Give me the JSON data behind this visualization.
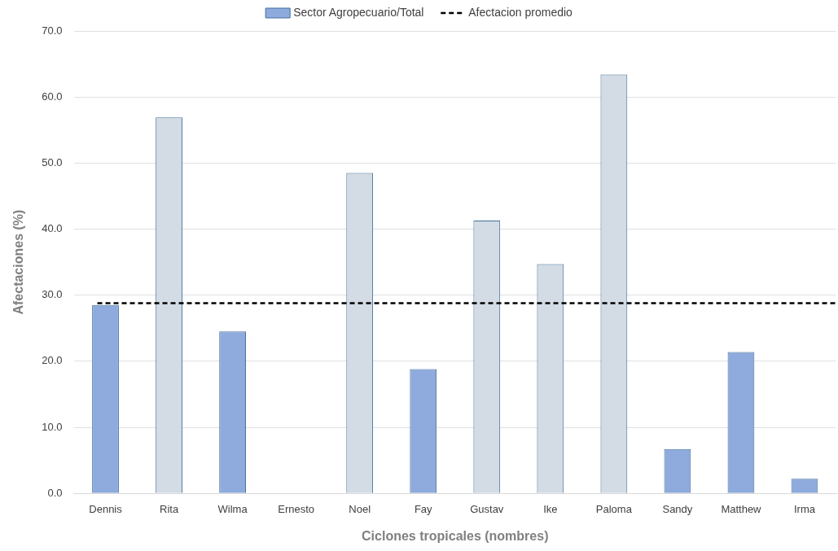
{
  "chart_data": {
    "type": "bar",
    "xlabel": "Ciclones tropicales (nombres)",
    "ylabel": "Afectaciones (%)",
    "categories": [
      "Dennis",
      "Rita",
      "Wilma",
      "Ernesto",
      "Noel",
      "Fay",
      "Gustav",
      "Ike",
      "Paloma",
      "Sandy",
      "Matthew",
      "Irma"
    ],
    "series": [
      {
        "name": "Sector Agropecuario/Total",
        "color": "#8faadc",
        "colors": [
          "#8faadc",
          "#d3dbe4",
          "#8faadc",
          "#8faadc",
          "#d3dbe4",
          "#8faadc",
          "#d3dbe4",
          "#d3dbe4",
          "#d3dbe4",
          "#8faadc",
          "#8faadc",
          "#8faadc"
        ],
        "values": [
          28.5,
          56.9,
          24.5,
          0,
          48.5,
          18.8,
          41.3,
          34.7,
          63.4,
          6.7,
          21.4,
          2.2
        ]
      }
    ],
    "ylim": [
      0,
      70
    ],
    "yticks": [
      {
        "value": 0,
        "label": "0.0"
      },
      {
        "value": 10,
        "label": "10.0"
      },
      {
        "value": 20,
        "label": "20.0"
      },
      {
        "value": 30,
        "label": "30.0"
      },
      {
        "value": 40,
        "label": "40.0"
      },
      {
        "value": 50,
        "label": "50.0"
      },
      {
        "value": 60,
        "label": "60.0"
      },
      {
        "value": 70,
        "label": "70.0"
      }
    ],
    "ref_lines": [
      {
        "axis": "y",
        "value": 28.8,
        "label": "Afectacion promedio",
        "color": "#000000",
        "line_style": "dashed"
      }
    ],
    "grid": "y",
    "legend": "top"
  }
}
